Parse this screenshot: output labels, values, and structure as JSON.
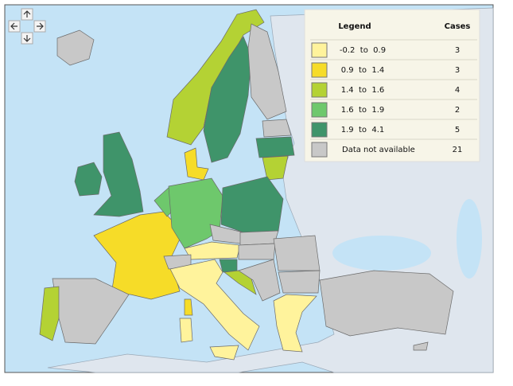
{
  "legend": {
    "title": "Legend",
    "cases_header": "Cases",
    "rows": [
      {
        "label": "-0.2  to  0.9",
        "color": "#fff39c",
        "cases": 3
      },
      {
        "label": "0.9  to  1.4",
        "color": "#f6dc28",
        "cases": 3
      },
      {
        "label": "1.4  to  1.6",
        "color": "#b4d234",
        "cases": 4
      },
      {
        "label": "1.6  to  1.9",
        "color": "#6ec86c",
        "cases": 2
      },
      {
        "label": "1.9  to  4.1",
        "color": "#3f946a",
        "cases": 5
      },
      {
        "label": "Data not available",
        "color": "#c8c8c8",
        "cases": 21
      }
    ]
  }
}
